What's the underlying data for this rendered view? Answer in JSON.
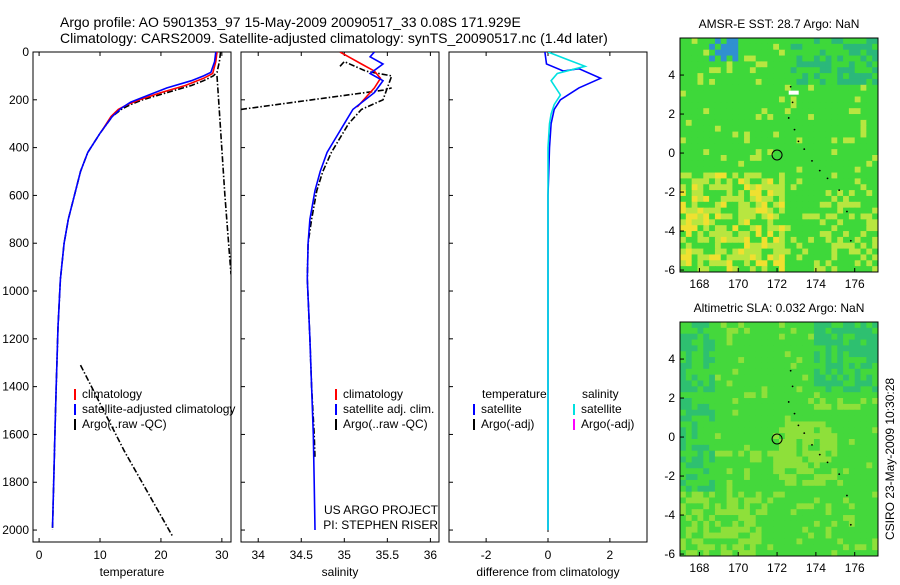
{
  "title": {
    "line1": "Argo profile: AO 5901353_97 15-May-2009 20090517_33 0.08S 171.929E",
    "line2": "Climatology: CARS2009. Satellite-adjusted climatology: synTS_20090517.nc (1.4d later)"
  },
  "side_label": "CSIRO 23-May-2009 10:30:28",
  "chart_data": [
    {
      "id": "temperature",
      "type": "line",
      "xlabel": "temperature",
      "ylabel": "",
      "xlim": [
        -1,
        31.5
      ],
      "ylim": [
        2050,
        0
      ],
      "xticks": [
        0,
        10,
        20,
        30
      ],
      "xtick_labels": [
        "0",
        "10",
        "20",
        "30"
      ],
      "yticks": [
        0,
        200,
        400,
        600,
        800,
        1000,
        1200,
        1400,
        1600,
        1800,
        2000
      ],
      "ytick_labels": [
        "0",
        "200",
        "400",
        "600",
        "800",
        "1000",
        "1200",
        "1400",
        "1600",
        "1800",
        "2000"
      ],
      "legend": [
        "climatology",
        "satellite-adjusted climatology",
        "Argo(..raw -QC)"
      ],
      "legend_colors": [
        "#ff0000",
        "#0000ff",
        "#000000"
      ],
      "series": [
        {
          "name": "Argo(..raw -QC)",
          "color": "#000000",
          "style": "dashdot",
          "x": [
            29.8,
            29.6,
            29.2,
            28.6,
            27.0,
            25.0,
            21.0,
            17.0,
            15.0,
            13.5,
            12.0,
            10.0,
            8.0,
            6.8,
            5.8,
            4.8,
            4.1,
            3.5,
            3.1,
            2.8,
            2.6,
            2.4,
            2.2
          ],
          "y": [
            0,
            40,
            85,
            100,
            120,
            140,
            170,
            200,
            220,
            240,
            270,
            340,
            420,
            500,
            600,
            700,
            800,
            950,
            1150,
            1400,
            1600,
            1800,
            2000
          ]
        },
        {
          "name": "Argo(..raw -QC) outliers",
          "color": "#000000",
          "style": "dashdot",
          "x": [
            29.2,
            29.6,
            30.5,
            31.5
          ],
          "y": [
            100,
            250,
            600,
            930
          ]
        },
        {
          "name": "Argo(..raw -QC) outliers",
          "color": "#000000",
          "style": "dashdot",
          "x": [
            6.8,
            14.0,
            22.0
          ],
          "y": [
            1310,
            1670,
            2030
          ]
        },
        {
          "name": "climatology",
          "color": "#ff0000",
          "style": "solid",
          "x": [
            29.2,
            29.0,
            28.5,
            27.0,
            24.0,
            20.0,
            16.5,
            14.5,
            13.0,
            11.8,
            10.3
          ],
          "y": [
            0,
            40,
            90,
            110,
            140,
            170,
            200,
            220,
            240,
            270,
            330
          ]
        },
        {
          "name": "satellite-adjusted climatology",
          "color": "#0000ff",
          "style": "solid",
          "x": [
            29.0,
            28.8,
            28.2,
            27.0,
            25.0,
            21.0,
            17.0,
            15.0,
            13.5,
            12.0,
            10.0,
            8.0,
            6.8,
            5.8,
            4.8,
            4.1,
            3.5,
            3.1,
            2.8,
            2.6,
            2.4,
            2.2
          ],
          "y": [
            0,
            40,
            85,
            100,
            120,
            150,
            190,
            210,
            235,
            270,
            340,
            420,
            500,
            600,
            700,
            800,
            950,
            1150,
            1400,
            1600,
            1800,
            1990
          ]
        }
      ]
    },
    {
      "id": "salinity",
      "type": "line",
      "xlabel": "salinity",
      "xlim": [
        33.8,
        36.1
      ],
      "ylim": [
        2050,
        0
      ],
      "xticks": [
        34,
        34.5,
        35,
        35.5,
        36
      ],
      "xtick_labels": [
        "34",
        "34.5",
        "35",
        "35.5",
        "36"
      ],
      "legend": [
        "climatology",
        "satellite adj. clim.",
        "Argo(..raw -QC)"
      ],
      "legend_colors": [
        "#ff0000",
        "#0000ff",
        "#000000"
      ],
      "annotation": [
        "US ARGO PROJECT",
        "PI: STEPHEN RISER"
      ],
      "series": [
        {
          "name": "Argo(..raw -QC) outliers",
          "color": "#000000",
          "style": "dashdot",
          "x": [
            33.8,
            35.45,
            35.55
          ],
          "y": [
            240,
            160,
            150
          ]
        },
        {
          "name": "Argo(..raw -QC)",
          "color": "#000000",
          "style": "dashdot",
          "x": [
            34.95,
            35.0,
            35.25,
            35.55,
            35.45,
            35.2,
            35.05,
            34.95,
            34.85,
            34.75,
            34.68,
            34.62,
            34.58,
            34.57,
            34.6,
            34.62,
            34.65,
            34.66
          ],
          "y": [
            60,
            40,
            80,
            100,
            200,
            240,
            300,
            360,
            420,
            500,
            580,
            700,
            800,
            950,
            1200,
            1400,
            1600,
            1700
          ]
        },
        {
          "name": "climatology",
          "color": "#ff0000",
          "style": "solid",
          "x": [
            34.95,
            35.05,
            35.2,
            35.35,
            35.42,
            35.35,
            35.15
          ],
          "y": [
            0,
            20,
            50,
            80,
            110,
            150,
            230
          ]
        },
        {
          "name": "satellite adj. clim.",
          "color": "#0000ff",
          "style": "solid",
          "x": [
            35.35,
            35.3,
            35.45,
            35.3,
            35.45,
            35.35,
            35.1,
            35.0,
            34.9,
            34.8,
            34.72,
            34.66,
            34.6,
            34.58,
            34.57,
            34.6,
            34.62,
            34.64,
            34.65,
            34.66
          ],
          "y": [
            0,
            20,
            50,
            90,
            120,
            170,
            240,
            300,
            360,
            420,
            500,
            580,
            700,
            800,
            950,
            1200,
            1400,
            1600,
            1800,
            2000
          ]
        }
      ]
    },
    {
      "id": "difference",
      "type": "line",
      "xlabel": "difference from climatology",
      "xlim": [
        -3.2,
        3.2
      ],
      "ylim": [
        2050,
        0
      ],
      "xticks": [
        -2,
        0,
        2
      ],
      "xtick_labels": [
        "-2",
        "0",
        "2"
      ],
      "legend_col1": {
        "title": "temperature",
        "entries": [
          "satellite",
          "Argo(-adj)"
        ],
        "colors": [
          "#0000ff",
          "#000000"
        ]
      },
      "legend_col2": {
        "title": "salinity",
        "entries": [
          "satellite",
          "Argo(-adj)"
        ],
        "colors": [
          "#00e0e0",
          "#ff00ff"
        ]
      },
      "series": [
        {
          "name": "temperature satellite",
          "color": "#0000ff",
          "style": "solid",
          "x": [
            -0.1,
            -0.05,
            0.5,
            1.0,
            1.7,
            1.0,
            0.4,
            0.2,
            0.1,
            0.05,
            0.0,
            0.0,
            0.0,
            0.0,
            0.0
          ],
          "y": [
            0,
            50,
            80,
            70,
            110,
            150,
            200,
            240,
            300,
            400,
            600,
            800,
            1000,
            1500,
            2000
          ]
        },
        {
          "name": "salinity satellite",
          "color": "#00e0e0",
          "style": "solid",
          "x": [
            0.0,
            0.6,
            1.2,
            0.9,
            0.3,
            0.1,
            0.4,
            0.2,
            0.1,
            0.05,
            0.0,
            0.0,
            0.0,
            0.0,
            0.0
          ],
          "y": [
            0,
            30,
            60,
            70,
            90,
            120,
            180,
            220,
            260,
            300,
            400,
            800,
            1200,
            1600,
            2000
          ]
        }
      ]
    },
    {
      "id": "sst",
      "type": "heatmap",
      "title": "AMSR-E SST: 28.7 Argo: NaN",
      "xlim": [
        167,
        177.2
      ],
      "ylim": [
        -6.1,
        5.9
      ],
      "xticks": [
        168,
        170,
        172,
        174,
        176
      ],
      "xtick_labels": [
        "168",
        "170",
        "172",
        "174",
        "176"
      ],
      "yticks": [
        4,
        2,
        0,
        -2,
        -4,
        -6
      ],
      "ytick_labels": [
        "4",
        "2",
        "0",
        "-2",
        "-4",
        "-6"
      ],
      "marker": {
        "lon": 172.0,
        "lat": -0.1
      },
      "colors": {
        "base": "#3ed83a",
        "warm": "#b8e640",
        "cool": "#2bb87a",
        "hot": "#f0e030",
        "red": "#ff3010",
        "blue": "#3090d0"
      }
    },
    {
      "id": "sla",
      "type": "heatmap",
      "title": "Altimetric SLA: 0.032 Argo: NaN",
      "xlim": [
        167,
        177.2
      ],
      "ylim": [
        -6.1,
        5.9
      ],
      "xticks": [
        168,
        170,
        172,
        174,
        176
      ],
      "xtick_labels": [
        "168",
        "170",
        "172",
        "174",
        "176"
      ],
      "yticks": [
        4,
        2,
        0,
        -2,
        -4,
        -6
      ],
      "ytick_labels": [
        "4",
        "2",
        "0",
        "-2",
        "-4",
        "-6"
      ],
      "marker": {
        "lon": 172.0,
        "lat": -0.1
      },
      "colors": {
        "base": "#44d83c",
        "light": "#8ee03a",
        "teal": "#2ec070"
      }
    }
  ]
}
